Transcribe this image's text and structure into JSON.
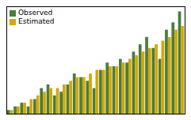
{
  "chart_data": {
    "type": "bar",
    "categories": [
      null,
      null,
      null,
      null,
      null,
      null,
      null,
      null,
      null,
      null,
      null,
      null,
      null,
      null,
      null,
      null,
      null,
      null,
      null,
      null,
      null,
      null,
      null,
      null,
      null,
      null,
      null
    ],
    "series": [
      {
        "name": "Observed",
        "color": "#4a7c3f",
        "values": [
          1,
          2,
          3,
          2,
          4,
          7,
          8,
          5,
          6,
          8,
          11,
          10,
          9,
          7,
          12,
          14,
          13,
          15,
          14,
          17,
          19,
          21,
          18,
          15,
          23,
          25,
          28
        ]
      },
      {
        "name": "Estimated",
        "color": "#d4a800",
        "values": [
          1,
          2,
          3,
          4,
          5,
          6,
          7,
          7,
          8,
          9,
          10,
          10,
          11,
          12,
          12,
          13,
          13,
          14,
          15,
          16,
          17,
          18,
          19,
          20,
          21,
          23,
          24
        ]
      }
    ],
    "ylim": [
      0,
      29.4
    ],
    "yticks": [],
    "tick_labels": false,
    "legend": "upper left",
    "grid": false
  }
}
